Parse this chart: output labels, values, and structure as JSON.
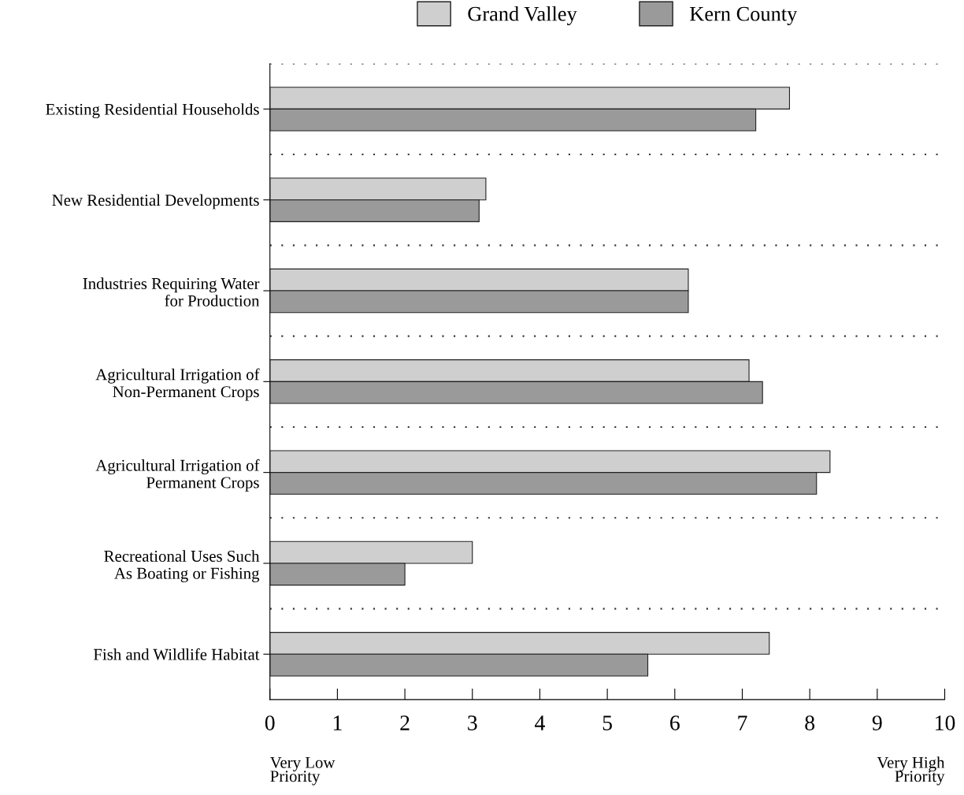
{
  "chart_data": {
    "type": "bar",
    "orientation": "horizontal",
    "categories": [
      "Existing Residential Households",
      "New Residential Developments",
      "Industries Requiring Water\nfor Production",
      "Agricultural Irrigation of\nNon-Permanent Crops",
      "Agricultural Irrigation of\nPermanent Crops",
      "Recreational Uses Such\nAs Boating or Fishing",
      "Fish and Wildlife Habitat"
    ],
    "series": [
      {
        "name": "Grand Valley",
        "color": "#cfcfcf",
        "values": [
          7.7,
          3.2,
          6.2,
          7.1,
          8.3,
          3.0,
          7.4
        ]
      },
      {
        "name": "Kern County",
        "color": "#9a9a9a",
        "values": [
          7.2,
          3.1,
          6.2,
          7.3,
          8.1,
          2.0,
          5.6
        ]
      }
    ],
    "xlim": [
      0,
      10
    ],
    "xticks": [
      0,
      1,
      2,
      3,
      4,
      5,
      6,
      7,
      8,
      9,
      10
    ],
    "annotations": [
      "Very Low\nPriority",
      "Very High\nPriority"
    ],
    "grid": "y",
    "legend": "top"
  }
}
